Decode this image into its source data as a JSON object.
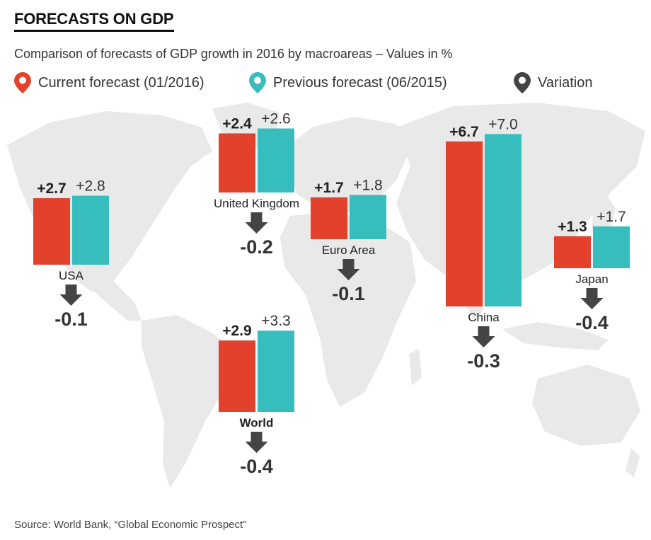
{
  "header": {
    "title": "FORECASTS ON GDP",
    "subtitle": "Comparison of forecasts of GDP growth in 2016 by macroareas – Values in %"
  },
  "legend": [
    {
      "label": "Current forecast (01/2016)",
      "color": "#e2412b",
      "icon": "map-pin-icon"
    },
    {
      "label": "Previous forecast (06/2015)",
      "color": "#38bdbf",
      "icon": "map-pin-icon"
    },
    {
      "label": "Variation",
      "color": "#444444",
      "icon": "map-pin-icon"
    }
  ],
  "chart_data": {
    "type": "bar",
    "background": "world map",
    "series_names": [
      "Current forecast (01/2016)",
      "Previous forecast (06/2015)",
      "Variation"
    ],
    "colors": {
      "current": "#e2412b",
      "previous": "#38bdbf",
      "variation": "#444444"
    },
    "regions": [
      {
        "name": "USA",
        "current": 2.7,
        "current_label": "+2.7",
        "previous": 2.8,
        "previous_label": "+2.8",
        "variation": -0.1,
        "variation_label": "-0.1"
      },
      {
        "name": "United Kingdom",
        "current": 2.4,
        "current_label": "+2.4",
        "previous": 2.6,
        "previous_label": "+2.6",
        "variation": -0.2,
        "variation_label": "-0.2"
      },
      {
        "name": "Euro Area",
        "current": 1.7,
        "current_label": "+1.7",
        "previous": 1.8,
        "previous_label": "+1.8",
        "variation": -0.1,
        "variation_label": "-0.1"
      },
      {
        "name": "China",
        "current": 6.7,
        "current_label": "+6.7",
        "previous": 7.0,
        "previous_label": "+7.0",
        "variation": -0.3,
        "variation_label": "-0.3"
      },
      {
        "name": "Japan",
        "current": 1.3,
        "current_label": "+1.3",
        "previous": 1.7,
        "previous_label": "+1.7",
        "variation": -0.4,
        "variation_label": "-0.4"
      },
      {
        "name": "World",
        "current": 2.9,
        "current_label": "+2.9",
        "previous": 3.3,
        "previous_label": "+3.3",
        "variation": -0.4,
        "variation_label": "-0.4"
      }
    ]
  },
  "footer": {
    "source": "Source: World Bank, “Global Economic Prospect”"
  }
}
